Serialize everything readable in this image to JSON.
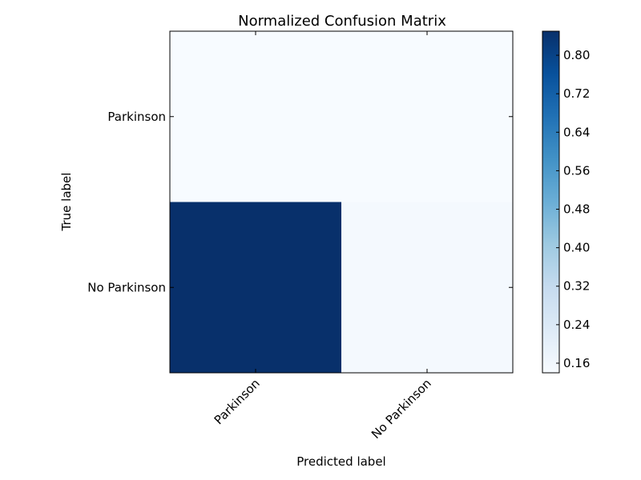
{
  "chart_data": {
    "type": "heatmap",
    "title": "Normalized Confusion Matrix",
    "xlabel": "Predicted label",
    "ylabel": "True label",
    "x_categories": [
      "Parkinson",
      "No Parkinson"
    ],
    "y_categories": [
      "Parkinson",
      "No Parkinson"
    ],
    "matrix": [
      [
        0.14,
        0.14
      ],
      [
        0.85,
        0.15
      ]
    ],
    "colormap": "Blues",
    "colorbar": {
      "ticks": [
        0.16,
        0.24,
        0.32,
        0.4,
        0.48,
        0.56,
        0.64,
        0.72,
        0.8
      ],
      "tick_labels": [
        "0.16",
        "0.24",
        "0.32",
        "0.40",
        "0.48",
        "0.56",
        "0.64",
        "0.72",
        "0.80"
      ],
      "range": [
        0.14,
        0.85
      ]
    },
    "x_tick_rotation": "45 degrees"
  }
}
